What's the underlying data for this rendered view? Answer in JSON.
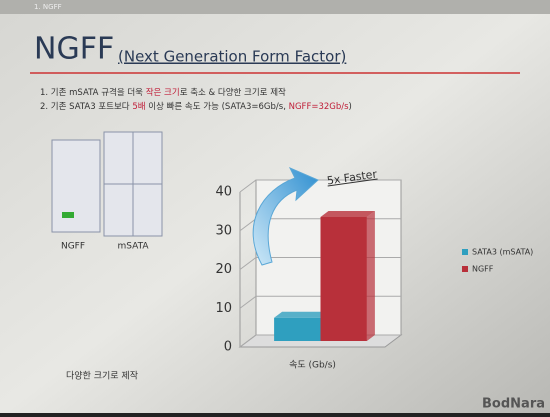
{
  "header": "1. NGFF",
  "title": "NGFF",
  "subtitle": "(Next Generation Form Factor)",
  "bullets": [
    [
      "1.  기존 mSATA 규격을 더욱 ",
      "작은 크기",
      "로 축소 & 다양한 크기로 제작"
    ],
    [
      "2.  기존 SATA3 포트보다 ",
      "5배",
      " 이상 빠른 속도 가능 (SATA3=6Gb/s, ",
      "NGFF=32Gb/s",
      ")"
    ]
  ],
  "image_labels": [
    "NGFF",
    "mSATA"
  ],
  "image_caption": "다양한 크기로 제작",
  "watermark": "BodNara",
  "chart_data": {
    "type": "bar",
    "categories": [
      "속도 (Gb/s)"
    ],
    "series": [
      {
        "name": "SATA3 (mSATA)",
        "color": "#2f9fbf",
        "values": [
          6
        ]
      },
      {
        "name": "NGFF",
        "color": "#b8303a",
        "values": [
          32
        ]
      }
    ],
    "ylim": [
      0,
      40
    ],
    "yticks": [
      0,
      10,
      20,
      30,
      40
    ],
    "grid": true,
    "legend": "right",
    "annotation": "5x Faster"
  }
}
